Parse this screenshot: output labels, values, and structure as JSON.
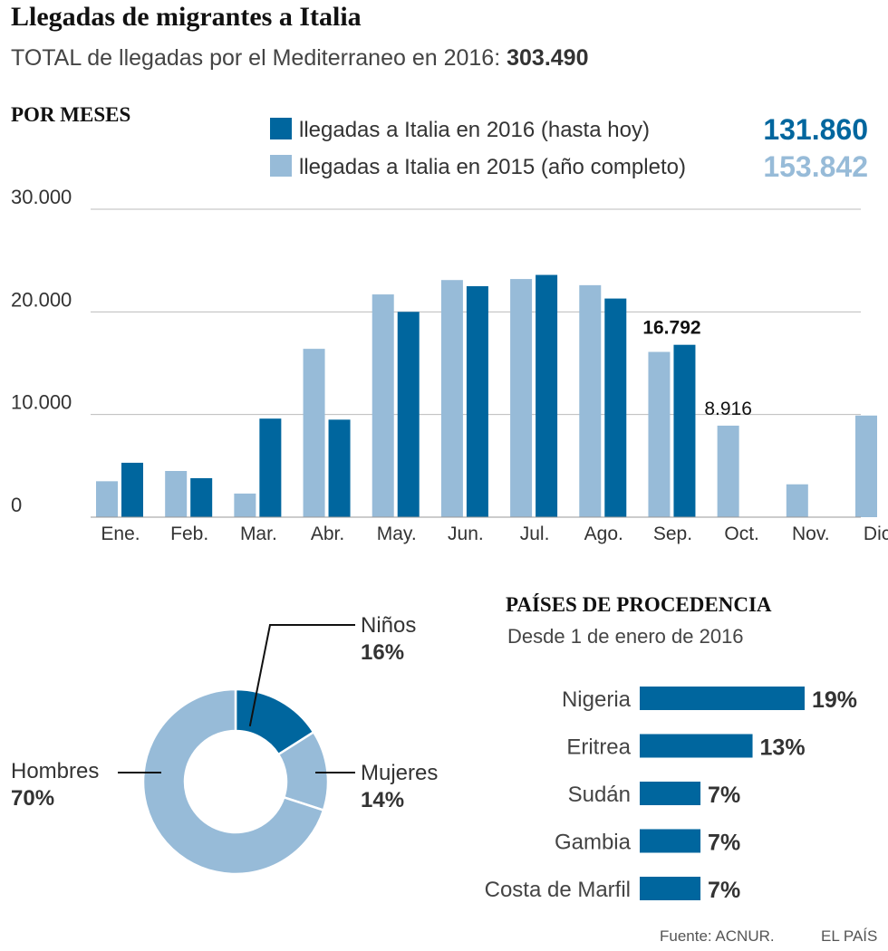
{
  "title": "Llegadas de migrantes a Italia",
  "subtitle": {
    "prefix": "TOTAL de llegadas por el Mediterraneo en 2016:",
    "total": "303.490"
  },
  "section_months": "POR MESES",
  "legend": [
    {
      "label": "llegadas a Italia en 2016 (hasta hoy)",
      "total": "131.860",
      "color": "#00669e"
    },
    {
      "label": "llegadas a Italia en 2015 (año completo)",
      "total": "153.842",
      "color": "#97bbd8"
    }
  ],
  "colors": {
    "y2016": "#00669e",
    "y2015": "#97bbd8",
    "grid": "#bbbbbb"
  },
  "chart_data": [
    {
      "type": "bar",
      "title": "POR MESES",
      "categories": [
        "Ene.",
        "Feb.",
        "Mar.",
        "Abr.",
        "May.",
        "Jun.",
        "Jul.",
        "Ago.",
        "Sep.",
        "Oct.",
        "Nov.",
        "Dic."
      ],
      "series": [
        {
          "name": "llegadas a Italia en 2015 (año completo)",
          "values": [
            3500,
            4500,
            2300,
            16400,
            21700,
            23100,
            23200,
            22600,
            16100,
            8916,
            3200,
            9900
          ]
        },
        {
          "name": "llegadas a Italia en 2016 (hasta hoy)",
          "values": [
            5300,
            3800,
            9600,
            9500,
            20000,
            22500,
            23600,
            21300,
            16792,
            null,
            null,
            null
          ]
        }
      ],
      "yticks": [
        "30.000",
        "20.000",
        "10.000",
        "0"
      ],
      "ytick_values": [
        30000,
        20000,
        10000,
        0
      ],
      "ylim": [
        0,
        30000
      ],
      "annotations": [
        {
          "text": "16.792",
          "category": "Sep.",
          "series": 1,
          "value": 16792,
          "bold": true
        },
        {
          "text": "8.916",
          "category": "Oct.",
          "series": 0,
          "value": 8916,
          "bold": false
        }
      ]
    },
    {
      "type": "pie",
      "title": "",
      "labels": [
        "Niños",
        "Mujeres",
        "Hombres"
      ],
      "values": [
        16,
        14,
        70
      ],
      "display": [
        "16%",
        "14%",
        "70%"
      ],
      "colors": [
        "#00669e",
        "#97bbd8",
        "#97bbd8"
      ]
    },
    {
      "type": "bar",
      "orientation": "horizontal",
      "title": "PAÍSES DE PROCEDENCIA",
      "subtitle": "Desde  1 de enero de 2016",
      "categories": [
        "Nigeria",
        "Eritrea",
        "Sudán",
        "Gambia",
        "Costa de Marfil"
      ],
      "values": [
        19,
        13,
        7,
        7,
        7
      ],
      "display": [
        "19%",
        "13%",
        "7%",
        "7%",
        "7%"
      ]
    }
  ],
  "countries": {
    "title": "PAÍSES DE PROCEDENCIA",
    "subtitle": "Desde  1 de enero de 2016"
  },
  "footer": {
    "source": "Fuente: ACNUR.",
    "brand": "EL PAÍS"
  }
}
